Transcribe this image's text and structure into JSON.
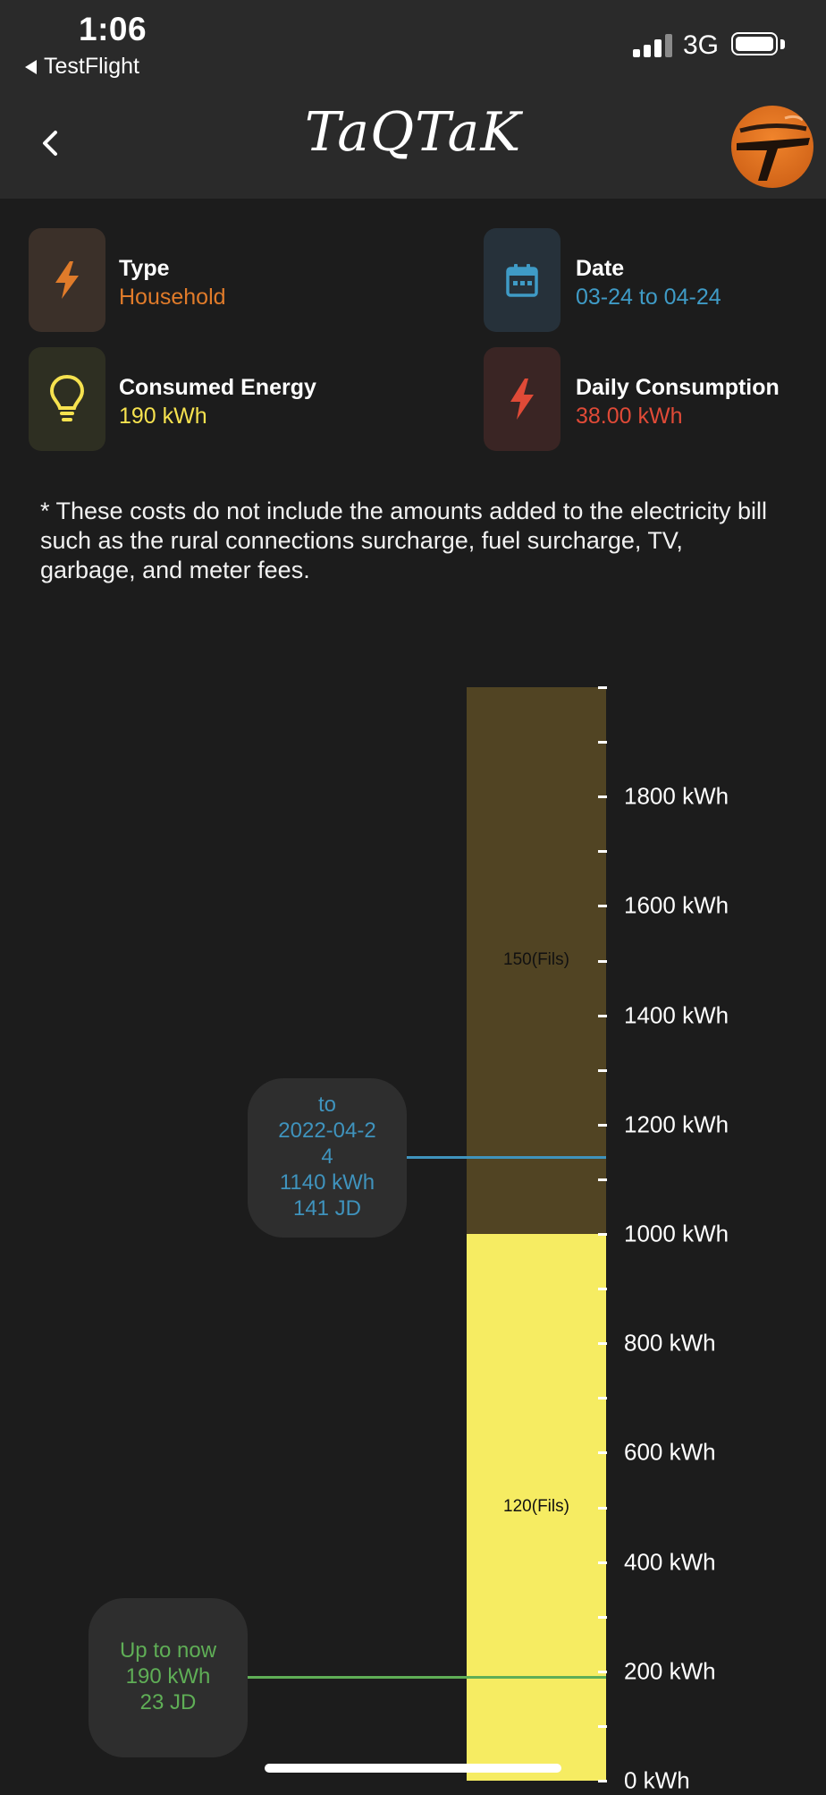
{
  "status_bar": {
    "time": "1:06",
    "back_app": "TestFlight",
    "network": "3G"
  },
  "nav": {
    "title": "TaQTaK",
    "back_icon": "chevron-left-icon",
    "logo_icon": "app-logo-icon"
  },
  "info": {
    "type": {
      "title": "Type",
      "value": "Household",
      "icon": "bolt-icon",
      "color": "#e07b2a",
      "bg": "#3b3029"
    },
    "date": {
      "title": "Date",
      "value": "03-24 to 04-24",
      "icon": "calendar-icon",
      "color": "#3f9bc6",
      "bg": "#26313a"
    },
    "energy": {
      "title": "Consumed Energy",
      "value": "190 kWh",
      "icon": "lightbulb-icon",
      "color": "#f6e24f",
      "bg": "#2e2f22"
    },
    "daily": {
      "title": "Daily Consumption",
      "value": "38.00 kWh",
      "icon": "bolt-icon",
      "color": "#e04a37",
      "bg": "#3a2524"
    }
  },
  "disclaimer": "* These costs do not include the amounts added to the electricity bill such as the rural connections surcharge, fuel surcharge, TV, garbage, and meter fees.",
  "chart": {
    "ticks": [
      "1800 kWh",
      "1600 kWh",
      "1400 kWh",
      "1200 kWh",
      "1000 kWh",
      "800 kWh",
      "600 kWh",
      "400 kWh",
      "200 kWh",
      "0 kWh"
    ],
    "tiers": [
      {
        "label": "120(Fils)",
        "from": 0,
        "to": 1000,
        "color": "#f6ec62"
      },
      {
        "label": "150(Fils)",
        "from": 1000,
        "to": 2000,
        "color": "#514423"
      }
    ],
    "projection": {
      "line1": "to",
      "line2": "2022-04-2",
      "line3": "4",
      "line4": "1140 kWh",
      "line5": "141 JD",
      "kwh": 1140,
      "color": "#3f93bd"
    },
    "current": {
      "line1": "Up to now",
      "line2": "190 kWh",
      "line3": "23 JD",
      "kwh": 190,
      "color": "#5fae56"
    }
  }
}
